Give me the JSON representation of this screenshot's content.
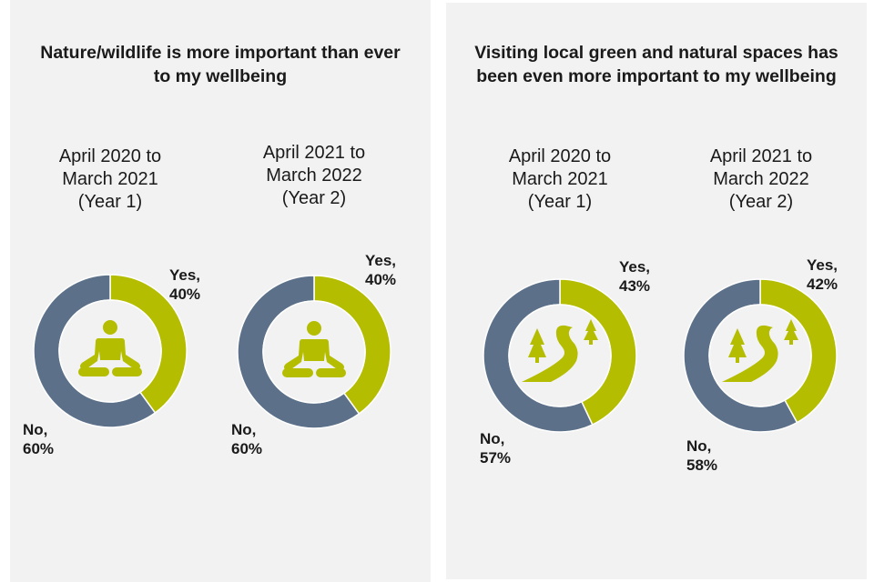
{
  "colors": {
    "yes": "#b5bd00",
    "no": "#5c7189",
    "background": "#f2f2f2",
    "icon": "#b5bd00"
  },
  "panels": [
    {
      "title": "Nature/wildlife is more important than ever\nto my wellbeing",
      "icon": "meditation-person-icon"
    },
    {
      "title": "Visiting local green and natural spaces has\nbeen even more important to my wellbeing",
      "icon": "trees-path-icon"
    }
  ],
  "chart_data": [
    {
      "type": "pie",
      "variant": "donut",
      "panel": "Nature/wildlife is more important than ever to my wellbeing",
      "title": "April 2020 to\nMarch 2021\n(Year 1)",
      "categories": [
        "Yes",
        "No"
      ],
      "values": [
        40,
        60
      ],
      "unit": "%",
      "labels": {
        "yes": "Yes,\n40%",
        "no": "No,\n60%"
      }
    },
    {
      "type": "pie",
      "variant": "donut",
      "panel": "Nature/wildlife is more important than ever to my wellbeing",
      "title": "April 2021 to\nMarch 2022\n(Year 2)",
      "categories": [
        "Yes",
        "No"
      ],
      "values": [
        40,
        60
      ],
      "unit": "%",
      "labels": {
        "yes": "Yes,\n40%",
        "no": "No,\n60%"
      }
    },
    {
      "type": "pie",
      "variant": "donut",
      "panel": "Visiting local green and natural spaces has been even more important to my wellbeing",
      "title": "April 2020 to\nMarch 2021\n(Year 1)",
      "categories": [
        "Yes",
        "No"
      ],
      "values": [
        43,
        57
      ],
      "unit": "%",
      "labels": {
        "yes": "Yes,\n43%",
        "no": "No,\n57%"
      }
    },
    {
      "type": "pie",
      "variant": "donut",
      "panel": "Visiting local green and natural spaces has been even more important to my wellbeing",
      "title": "April 2021 to\nMarch 2022\n(Year 2)",
      "categories": [
        "Yes",
        "No"
      ],
      "values": [
        42,
        58
      ],
      "unit": "%",
      "labels": {
        "yes": "Yes,\n42%",
        "no": "No,\n58%"
      }
    }
  ]
}
